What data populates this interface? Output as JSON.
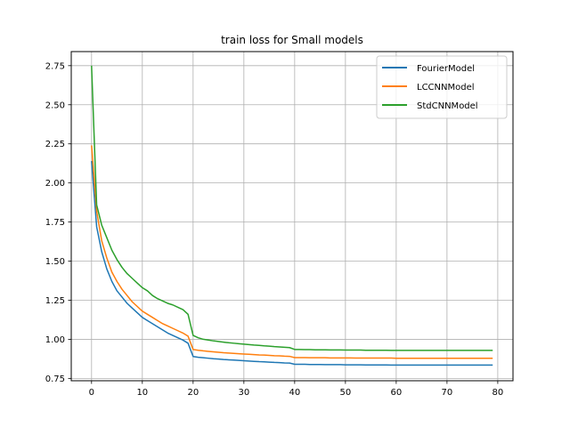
{
  "chart_data": {
    "type": "line",
    "title": "train loss for Small models",
    "xlabel": "",
    "ylabel": "",
    "xlim": [
      -4,
      83
    ],
    "ylim": [
      0.735,
      2.84
    ],
    "xticks": [
      0,
      10,
      20,
      30,
      40,
      50,
      60,
      70,
      80
    ],
    "xtick_labels": [
      "0",
      "10",
      "20",
      "30",
      "40",
      "50",
      "60",
      "70",
      "80"
    ],
    "yticks": [
      0.75,
      1.0,
      1.25,
      1.5,
      1.75,
      2.0,
      2.25,
      2.5,
      2.75
    ],
    "ytick_labels": [
      "0.75",
      "1.00",
      "1.25",
      "1.50",
      "1.75",
      "2.00",
      "2.25",
      "2.50",
      "2.75"
    ],
    "grid": true,
    "legend_position": "top-right",
    "series": [
      {
        "name": "FourierModel",
        "color": "#1f77b4",
        "values": [
          2.14,
          1.72,
          1.56,
          1.45,
          1.37,
          1.31,
          1.27,
          1.23,
          1.2,
          1.17,
          1.14,
          1.12,
          1.1,
          1.08,
          1.06,
          1.04,
          1.025,
          1.01,
          0.995,
          0.975,
          0.89,
          0.885,
          0.882,
          0.879,
          0.876,
          0.874,
          0.871,
          0.869,
          0.867,
          0.865,
          0.863,
          0.861,
          0.859,
          0.857,
          0.856,
          0.854,
          0.852,
          0.851,
          0.849,
          0.848,
          0.84,
          0.84,
          0.84,
          0.839,
          0.839,
          0.839,
          0.838,
          0.838,
          0.838,
          0.838,
          0.837,
          0.837,
          0.837,
          0.837,
          0.836,
          0.836,
          0.836,
          0.836,
          0.836,
          0.835,
          0.835,
          0.835,
          0.835,
          0.835,
          0.835,
          0.835,
          0.835,
          0.835,
          0.835,
          0.835,
          0.835,
          0.835,
          0.835,
          0.835,
          0.835,
          0.835,
          0.835,
          0.835,
          0.835,
          0.835
        ]
      },
      {
        "name": "LCCNNModel",
        "color": "#ff7f0e",
        "values": [
          2.24,
          1.82,
          1.63,
          1.52,
          1.43,
          1.37,
          1.32,
          1.28,
          1.24,
          1.21,
          1.18,
          1.16,
          1.14,
          1.12,
          1.1,
          1.085,
          1.07,
          1.055,
          1.04,
          1.02,
          0.935,
          0.93,
          0.926,
          0.923,
          0.92,
          0.917,
          0.914,
          0.912,
          0.91,
          0.908,
          0.906,
          0.904,
          0.902,
          0.9,
          0.899,
          0.897,
          0.895,
          0.894,
          0.892,
          0.891,
          0.883,
          0.883,
          0.883,
          0.882,
          0.882,
          0.882,
          0.882,
          0.881,
          0.881,
          0.881,
          0.881,
          0.881,
          0.88,
          0.88,
          0.88,
          0.88,
          0.88,
          0.88,
          0.88,
          0.88,
          0.879,
          0.879,
          0.879,
          0.879,
          0.879,
          0.879,
          0.879,
          0.879,
          0.879,
          0.879,
          0.879,
          0.879,
          0.879,
          0.879,
          0.879,
          0.879,
          0.879,
          0.879,
          0.879,
          0.879
        ]
      },
      {
        "name": "StdCNNModel",
        "color": "#2ca02c",
        "values": [
          2.75,
          1.86,
          1.73,
          1.65,
          1.57,
          1.51,
          1.46,
          1.42,
          1.39,
          1.36,
          1.33,
          1.31,
          1.28,
          1.26,
          1.245,
          1.23,
          1.22,
          1.205,
          1.19,
          1.16,
          1.025,
          1.01,
          1.0,
          0.995,
          0.99,
          0.986,
          0.982,
          0.978,
          0.975,
          0.972,
          0.969,
          0.966,
          0.963,
          0.961,
          0.958,
          0.956,
          0.953,
          0.951,
          0.949,
          0.947,
          0.935,
          0.935,
          0.934,
          0.934,
          0.933,
          0.933,
          0.933,
          0.932,
          0.932,
          0.932,
          0.931,
          0.931,
          0.931,
          0.931,
          0.93,
          0.93,
          0.93,
          0.93,
          0.93,
          0.929,
          0.929,
          0.929,
          0.929,
          0.929,
          0.929,
          0.929,
          0.929,
          0.929,
          0.929,
          0.929,
          0.929,
          0.929,
          0.929,
          0.929,
          0.929,
          0.929,
          0.929,
          0.929,
          0.929,
          0.929
        ]
      }
    ]
  }
}
